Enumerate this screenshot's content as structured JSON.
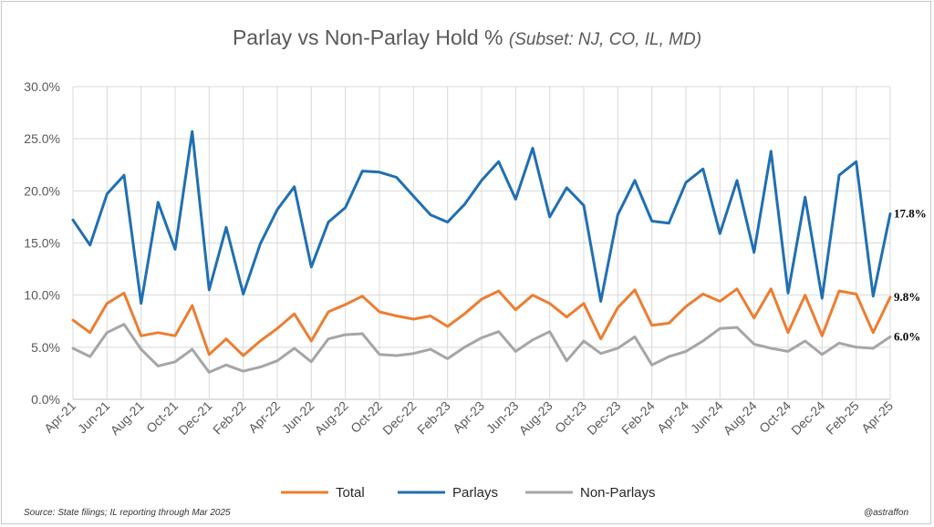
{
  "chart_data": {
    "type": "line",
    "title": "Parlay vs Non-Parlay Hold %",
    "subtitle": "(Subset: NJ, CO, IL, MD)",
    "xlabel": "",
    "ylabel": "",
    "ylim": [
      0,
      30
    ],
    "y_ticks": [
      "0.0%",
      "5.0%",
      "10.0%",
      "15.0%",
      "20.0%",
      "25.0%",
      "30.0%"
    ],
    "grid": true,
    "legend_position": "bottom",
    "x_tick_labels": [
      "Apr-21",
      "Jun-21",
      "Aug-21",
      "Oct-21",
      "Dec-21",
      "Feb-22",
      "Apr-22",
      "Jun-22",
      "Aug-22",
      "Oct-22",
      "Dec-22",
      "Feb-23",
      "Apr-23",
      "Jun-23",
      "Aug-23",
      "Oct-23",
      "Dec-23",
      "Feb-24",
      "Apr-24",
      "Jun-24",
      "Aug-24",
      "Oct-24",
      "Dec-24",
      "Feb-25",
      "Apr-25"
    ],
    "categories": [
      "Apr-21",
      "May-21",
      "Jun-21",
      "Jul-21",
      "Aug-21",
      "Sep-21",
      "Oct-21",
      "Nov-21",
      "Dec-21",
      "Jan-22",
      "Feb-22",
      "Mar-22",
      "Apr-22",
      "May-22",
      "Jun-22",
      "Jul-22",
      "Aug-22",
      "Sep-22",
      "Oct-22",
      "Nov-22",
      "Dec-22",
      "Jan-23",
      "Feb-23",
      "Mar-23",
      "Apr-23",
      "May-23",
      "Jun-23",
      "Jul-23",
      "Aug-23",
      "Sep-23",
      "Oct-23",
      "Nov-23",
      "Dec-23",
      "Jan-24",
      "Feb-24",
      "Mar-24",
      "Apr-24",
      "May-24",
      "Jun-24",
      "Jul-24",
      "Aug-24",
      "Sep-24",
      "Oct-24",
      "Nov-24",
      "Dec-24",
      "Jan-25",
      "Feb-25",
      "Mar-25",
      "Apr-25"
    ],
    "series": [
      {
        "name": "Total",
        "color": "#ED7D31",
        "end_label": "9.8%",
        "values": [
          7.6,
          6.4,
          9.2,
          10.2,
          6.1,
          6.4,
          6.1,
          9.0,
          4.3,
          5.8,
          4.2,
          5.6,
          6.8,
          8.2,
          5.6,
          8.4,
          9.1,
          9.9,
          8.4,
          8.0,
          7.7,
          8.0,
          7.0,
          8.2,
          9.6,
          10.4,
          8.6,
          10.0,
          9.2,
          7.9,
          9.2,
          5.8,
          8.8,
          10.5,
          7.1,
          7.3,
          8.9,
          10.1,
          9.4,
          10.6,
          7.8,
          10.6,
          6.4,
          10.0,
          6.1,
          10.4,
          10.1,
          6.4,
          9.8
        ]
      },
      {
        "name": "Parlays",
        "color": "#1F6FB4",
        "end_label": "17.8%",
        "values": [
          17.2,
          14.8,
          19.7,
          21.5,
          9.2,
          18.9,
          14.4,
          25.7,
          10.5,
          16.5,
          10.1,
          14.9,
          18.2,
          20.4,
          12.7,
          17.0,
          18.4,
          21.9,
          21.8,
          21.3,
          19.5,
          17.7,
          17.0,
          18.7,
          21.0,
          22.8,
          19.2,
          24.1,
          17.5,
          20.3,
          18.6,
          9.4,
          17.7,
          21.0,
          17.1,
          16.9,
          20.8,
          22.1,
          15.9,
          21.0,
          14.1,
          23.8,
          10.2,
          19.4,
          9.7,
          21.5,
          22.8,
          9.9,
          17.8
        ]
      },
      {
        "name": "Non-Parlays",
        "color": "#A6A6A6",
        "end_label": "6.0%",
        "values": [
          4.9,
          4.1,
          6.4,
          7.2,
          4.8,
          3.2,
          3.6,
          4.8,
          2.6,
          3.3,
          2.7,
          3.1,
          3.7,
          4.9,
          3.6,
          5.8,
          6.2,
          6.3,
          4.3,
          4.2,
          4.4,
          4.8,
          3.9,
          5.0,
          5.9,
          6.5,
          4.6,
          5.7,
          6.5,
          3.7,
          5.6,
          4.4,
          4.9,
          6.0,
          3.3,
          4.1,
          4.6,
          5.6,
          6.8,
          6.9,
          5.3,
          4.9,
          4.6,
          5.6,
          4.3,
          5.4,
          5.0,
          4.9,
          6.0
        ]
      }
    ]
  },
  "footer": {
    "source": "Source: State filings;  IL reporting  through  Mar 2025",
    "credit": "@astraffon"
  }
}
